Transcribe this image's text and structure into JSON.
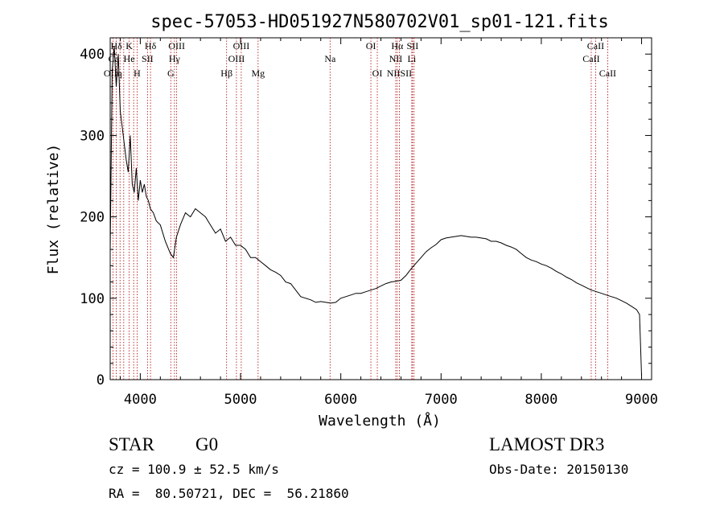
{
  "chart_data": {
    "type": "line",
    "title": "spec-57053-HD051927N580702V01_sp01-121.fits",
    "xlabel": "Wavelength (Å)",
    "ylabel": "Flux (relative)",
    "xlim": [
      3700,
      9100
    ],
    "ylim": [
      0,
      420
    ],
    "xticks": [
      4000,
      5000,
      6000,
      7000,
      8000,
      9000
    ],
    "yticks": [
      0,
      100,
      200,
      300,
      400
    ],
    "grid": false,
    "legend": "none",
    "series": [
      {
        "x": [
          3700,
          3720,
          3740,
          3760,
          3780,
          3800,
          3820,
          3840,
          3860,
          3880,
          3900,
          3920,
          3940,
          3960,
          3980,
          4000,
          4020,
          4040,
          4060,
          4080,
          4100,
          4130,
          4160,
          4200,
          4250,
          4300,
          4330,
          4360,
          4400,
          4450,
          4500,
          4550,
          4600,
          4650,
          4700,
          4750,
          4800,
          4850,
          4900,
          4950,
          5000,
          5050,
          5100,
          5150,
          5200,
          5250,
          5300,
          5350,
          5400,
          5450,
          5500,
          5550,
          5600,
          5650,
          5700,
          5750,
          5800,
          5850,
          5900,
          5950,
          6000,
          6050,
          6100,
          6150,
          6200,
          6250,
          6300,
          6350,
          6400,
          6450,
          6500,
          6550,
          6600,
          6650,
          6700,
          6750,
          6800,
          6850,
          6900,
          6950,
          7000,
          7050,
          7100,
          7150,
          7200,
          7250,
          7300,
          7350,
          7400,
          7450,
          7500,
          7550,
          7600,
          7650,
          7700,
          7750,
          7800,
          7850,
          7900,
          7950,
          8000,
          8050,
          8100,
          8150,
          8200,
          8250,
          8300,
          8350,
          8400,
          8450,
          8500,
          8550,
          8600,
          8650,
          8700,
          8750,
          8800,
          8850,
          8900,
          8950,
          8980,
          9000
        ],
        "y": [
          160,
          380,
          410,
          360,
          400,
          330,
          310,
          290,
          270,
          255,
          300,
          240,
          230,
          260,
          220,
          245,
          230,
          240,
          225,
          220,
          210,
          205,
          195,
          190,
          170,
          155,
          150,
          175,
          190,
          205,
          200,
          210,
          205,
          200,
          190,
          180,
          185,
          170,
          175,
          165,
          165,
          160,
          150,
          150,
          145,
          140,
          135,
          132,
          128,
          120,
          118,
          110,
          102,
          100,
          98,
          95,
          96,
          95,
          94,
          95,
          100,
          102,
          104,
          106,
          106,
          108,
          110,
          112,
          115,
          118,
          120,
          121,
          122,
          128,
          136,
          143,
          150,
          157,
          162,
          166,
          172,
          174,
          175,
          176,
          177,
          176,
          175,
          175,
          174,
          173,
          170,
          170,
          168,
          165,
          163,
          160,
          155,
          150,
          147,
          145,
          142,
          140,
          137,
          133,
          130,
          126,
          123,
          119,
          116,
          113,
          110,
          108,
          106,
          104,
          102,
          100,
          97,
          94,
          90,
          86,
          80,
          5
        ]
      }
    ],
    "line_markers": [
      {
        "label": "Hδ",
        "row": 0,
        "x": 3761
      },
      {
        "label": "K",
        "row": 0,
        "x": 3889
      },
      {
        "label": "Hδ",
        "row": 0,
        "x": 4102
      },
      {
        "label": "OIII",
        "row": 0,
        "x": 4363
      },
      {
        "label": "OIII",
        "row": 0,
        "x": 5007
      },
      {
        "label": "OI",
        "row": 0,
        "x": 6300
      },
      {
        "label": "Hα",
        "row": 0,
        "x": 6563
      },
      {
        "label": "SII",
        "row": 0,
        "x": 6716
      },
      {
        "label": "CaII",
        "row": 0,
        "x": 8542
      },
      {
        "label": "Ca",
        "row": 1,
        "x": 3733
      },
      {
        "label": "He",
        "row": 1,
        "x": 3889
      },
      {
        "label": "SII",
        "row": 1,
        "x": 4072
      },
      {
        "label": "Hγ",
        "row": 1,
        "x": 4341
      },
      {
        "label": "OIII",
        "row": 1,
        "x": 4959
      },
      {
        "label": "Na",
        "row": 1,
        "x": 5893
      },
      {
        "label": "NII",
        "row": 1,
        "x": 6548
      },
      {
        "label": "Li",
        "row": 1,
        "x": 6708
      },
      {
        "label": "CaII",
        "row": 1,
        "x": 8498
      },
      {
        "label": "OIIη",
        "row": 2,
        "x": 3727
      },
      {
        "label": "H",
        "row": 2,
        "x": 3968
      },
      {
        "label": "G",
        "row": 2,
        "x": 4304
      },
      {
        "label": "Hβ",
        "row": 2,
        "x": 4861
      },
      {
        "label": "Mg",
        "row": 2,
        "x": 5175
      },
      {
        "label": "OI",
        "row": 2,
        "x": 6364
      },
      {
        "label": "NIISII",
        "row": 2,
        "x": 6584
      },
      {
        "label": "CaII",
        "row": 2,
        "x": 8662
      }
    ],
    "marker_lines": [
      3727,
      3761,
      3798,
      3835,
      3889,
      3934,
      3968,
      4072,
      4102,
      4304,
      4341,
      4363,
      4861,
      4959,
      5007,
      5175,
      5893,
      6300,
      6364,
      6548,
      6563,
      6584,
      6708,
      6716,
      6731,
      8498,
      8542,
      8662
    ]
  },
  "info": {
    "object_class": "STAR",
    "subclass": "G0",
    "survey": "LAMOST DR3",
    "redshift_line": "cz = 100.9 ± 52.5 km/s",
    "obs_date_line": "Obs-Date: 20150130",
    "coords_line": "RA =  80.50721, DEC =  56.21860"
  }
}
